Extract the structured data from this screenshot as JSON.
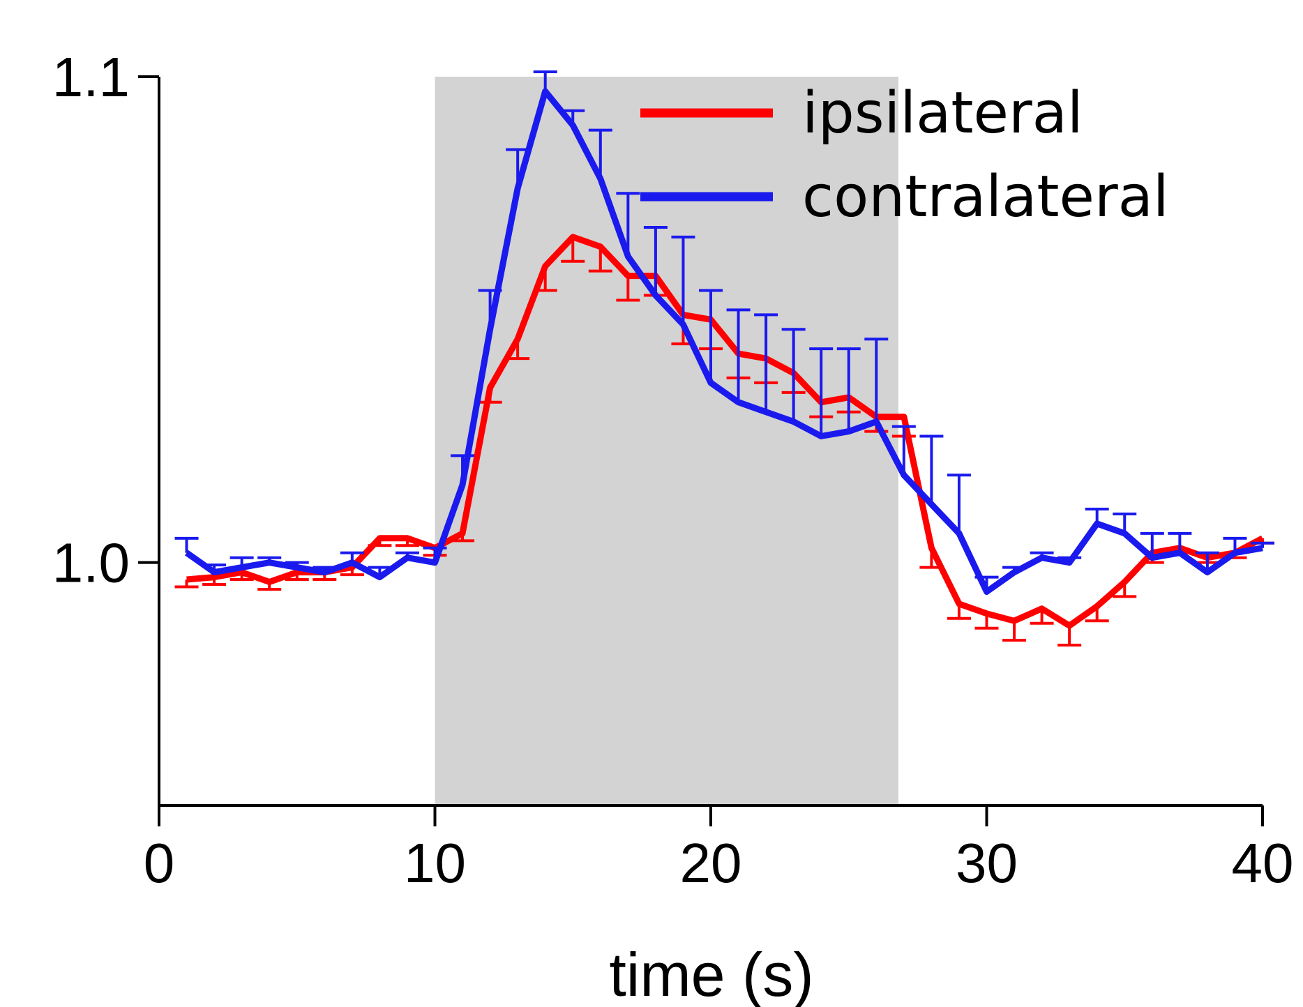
{
  "chart_data": {
    "type": "line",
    "title": "",
    "xlabel": "time (s)",
    "ylabel": "",
    "xlim": [
      0,
      40
    ],
    "ylim": [
      0.95,
      1.1
    ],
    "x_ticks": [
      0,
      10,
      20,
      30,
      40
    ],
    "y_ticks": [
      1.0,
      1.1
    ],
    "y_tick_labels": [
      "1.0",
      "1.1"
    ],
    "grid": false,
    "legend_position": "top-right",
    "stimulus_window": {
      "start": 10,
      "end": 26.8,
      "color": "#d3d3d3"
    },
    "x": [
      1,
      2,
      3,
      4,
      5,
      6,
      7,
      8,
      9,
      10,
      11,
      12,
      13,
      14,
      15,
      16,
      17,
      18,
      19,
      20,
      21,
      22,
      23,
      24,
      25,
      26,
      27,
      28,
      29,
      30,
      31,
      32,
      33,
      34,
      35,
      36,
      37,
      38,
      39,
      40
    ],
    "series": [
      {
        "name": "ipsilateral",
        "color": "#ff0000",
        "values": [
          0.9965,
          0.997,
          0.998,
          0.996,
          0.998,
          0.998,
          0.999,
          1.005,
          1.005,
          1.003,
          1.006,
          1.036,
          1.046,
          1.061,
          1.067,
          1.065,
          1.059,
          1.059,
          1.051,
          1.05,
          1.043,
          1.042,
          1.039,
          1.033,
          1.034,
          1.03,
          1.03,
          1.003,
          0.9915,
          0.9895,
          0.988,
          0.9905,
          0.987,
          0.991,
          0.996,
          1.002,
          1.003,
          1.001,
          1.002,
          1.005
        ],
        "errors": [
          0.0015,
          0.0015,
          0.0015,
          0.0015,
          0.0015,
          0.0015,
          0.0015,
          0.0015,
          0.0015,
          0.0015,
          0.0015,
          0.003,
          0.004,
          0.005,
          0.005,
          0.005,
          0.005,
          0.004,
          0.006,
          0.006,
          0.005,
          0.005,
          0.004,
          0.003,
          0.003,
          0.003,
          0.004,
          0.004,
          0.003,
          0.003,
          0.004,
          0.003,
          0.004,
          0.003,
          0.003,
          0.002,
          0.001,
          0.001,
          0.001,
          0.001
        ]
      },
      {
        "name": "contralateral",
        "color": "#1a1aee",
        "values": [
          1.002,
          0.998,
          0.999,
          1.0,
          0.999,
          0.998,
          1.0,
          0.997,
          1.001,
          1.0,
          1.016,
          1.048,
          1.077,
          1.097,
          1.09,
          1.079,
          1.063,
          1.055,
          1.049,
          1.037,
          1.033,
          1.031,
          1.029,
          1.026,
          1.027,
          1.029,
          1.018,
          1.012,
          1.006,
          0.994,
          0.998,
          1.001,
          1.0,
          1.008,
          1.006,
          1.001,
          1.002,
          0.998,
          1.002,
          1.003
        ],
        "errors": [
          0.003,
          0.0015,
          0.002,
          0.001,
          0.001,
          0.001,
          0.002,
          0.002,
          0.001,
          0.003,
          0.006,
          0.008,
          0.008,
          0.004,
          0.003,
          0.01,
          0.013,
          0.014,
          0.018,
          0.019,
          0.019,
          0.02,
          0.019,
          0.018,
          0.017,
          0.017,
          0.01,
          0.014,
          0.012,
          0.003,
          0.001,
          0.001,
          0.001,
          0.003,
          0.004,
          0.005,
          0.004,
          0.004,
          0.003,
          0.001
        ]
      }
    ]
  }
}
